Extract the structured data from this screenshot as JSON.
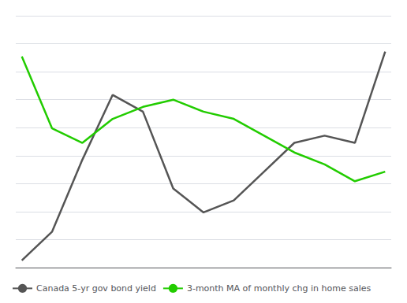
{
  "chart_data": {
    "type": "line",
    "x": [
      0,
      1,
      2,
      3,
      4,
      5,
      6,
      7,
      8,
      9,
      10,
      11,
      12
    ],
    "series": [
      {
        "name": "Canada 5-yr gov bond yield",
        "color": "#555555",
        "values": [
          0.03,
          0.15,
          0.45,
          0.72,
          0.65,
          0.33,
          0.23,
          0.28,
          0.4,
          0.52,
          0.55,
          0.52,
          0.9
        ]
      },
      {
        "name": "3-month MA of monthly chg in home sales",
        "color": "#22cc00",
        "values": [
          0.88,
          0.58,
          0.52,
          0.62,
          0.67,
          0.7,
          0.65,
          0.62,
          0.55,
          0.48,
          0.43,
          0.36,
          0.4
        ]
      }
    ],
    "xlim": [
      -0.2,
      12.2
    ],
    "ylim": [
      0.0,
      1.05
    ],
    "yticks": [
      0.0,
      0.11666666666666667,
      0.23333333333333334,
      0.35,
      0.4666666666666667,
      0.5833333333333334,
      0.7,
      0.8166666666666667,
      0.9333333333333333,
      1.05
    ],
    "grid": true,
    "legend": "lower left",
    "tick_labels": false
  }
}
